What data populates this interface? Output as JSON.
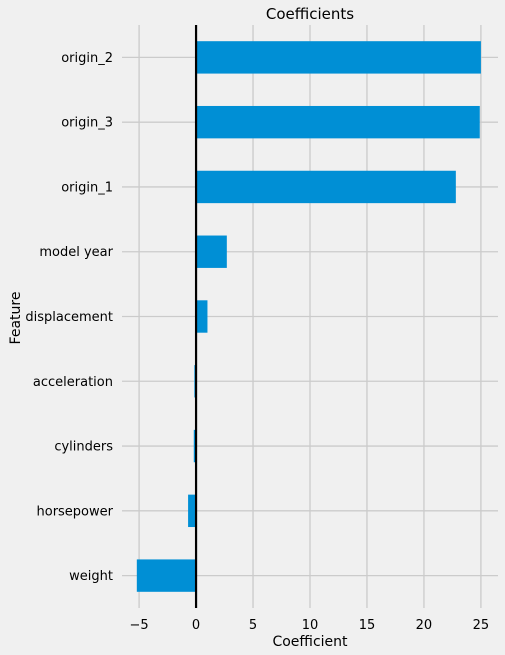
{
  "chart_data": {
    "type": "bar",
    "orientation": "horizontal",
    "title": "Coefficients",
    "xlabel": "Coefficient",
    "ylabel": "Feature",
    "categories": [
      "origin_2",
      "origin_3",
      "origin_1",
      "model year",
      "displacement",
      "acceleration",
      "cylinders",
      "horsepower",
      "weight"
    ],
    "values": [
      25.0,
      24.9,
      22.8,
      2.7,
      1.0,
      -0.15,
      -0.2,
      -0.7,
      -5.2
    ],
    "xlim": [
      -6.5,
      26.5
    ],
    "xticks": [
      -5,
      0,
      5,
      10,
      15,
      20,
      25
    ],
    "xtick_labels": [
      "−5",
      "0",
      "5",
      "10",
      "15",
      "20",
      "25"
    ],
    "grid": true,
    "bar_color": "#008fd5",
    "background_color": "#f0f0f0",
    "grid_color": "#cbcbcb",
    "zero_line_color": "#000000"
  }
}
